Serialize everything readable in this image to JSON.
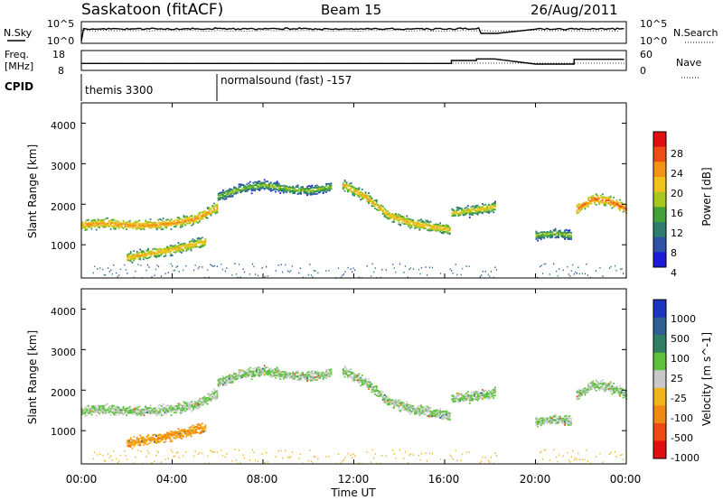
{
  "header": {
    "station": "Saskatoon (fitACF)",
    "beam": "Beam 15",
    "date": "26/Aug/2011"
  },
  "noise_panel": {
    "left_label": "N.Sky",
    "left_ticks": [
      "10^5",
      "10^0"
    ],
    "right_label": "N.Search",
    "right_ticks": [
      "10^5",
      "10^0"
    ]
  },
  "freq_panel": {
    "left_label_line1": "Freq.",
    "left_label_line2": "[MHz]",
    "left_ticks": [
      "18",
      "8"
    ],
    "right_label": "Nave",
    "right_ticks": [
      "60",
      "0"
    ]
  },
  "cpid_panel": {
    "label": "CPID",
    "segments": [
      "themis 3300",
      "normalsound (fast) -157"
    ]
  },
  "axes": {
    "ylabel": "Slant Range [km]",
    "yticks": [
      "1000",
      "2000",
      "3000",
      "4000"
    ],
    "xlabel": "Time UT",
    "xticks": [
      "00:00",
      "04:00",
      "08:00",
      "12:00",
      "16:00",
      "20:00",
      "00:00"
    ]
  },
  "power_colorbar": {
    "label": "Power [dB]",
    "ticks": [
      "4",
      "8",
      "12",
      "16",
      "20",
      "24",
      "28"
    ],
    "colors": [
      "#1c1cd8",
      "#2e52a8",
      "#2e7d6e",
      "#3fa33a",
      "#a8c81e",
      "#f0c21c",
      "#f39316",
      "#ef4b14",
      "#e01010"
    ]
  },
  "velocity_colorbar": {
    "label": "Velocity [m s^-1]",
    "ticks": [
      "1000",
      "500",
      "100",
      "25",
      "-25",
      "-100",
      "-500",
      "-1000"
    ],
    "colors": [
      "#1c34c0",
      "#2e5e92",
      "#2f8062",
      "#5cc23c",
      "#c8c8c8",
      "#f2b21a",
      "#f08a12",
      "#ee4a12",
      "#e01010"
    ]
  },
  "chart_data": {
    "type": "heatmap",
    "x_range": [
      "00:00",
      "24:00"
    ],
    "y_range_km": [
      180,
      4500
    ],
    "gaps_hours": [
      [
        18.3,
        20.0
      ]
    ],
    "nave_steps": [
      {
        "t0": 0.0,
        "t1": 16.3,
        "nave": 20
      },
      {
        "t0": 16.3,
        "t1": 17.4,
        "nave": 30
      },
      {
        "t0": 17.4,
        "t1": 18.2,
        "nave": 35
      },
      {
        "t0": 20.0,
        "t1": 21.7,
        "nave": 18
      },
      {
        "t0": 21.7,
        "t1": 23.9,
        "nave": 34
      }
    ],
    "scatter_bands": [
      {
        "t": [
          0.0,
          1.0,
          2.0,
          3.0,
          4.0,
          5.0,
          6.0
        ],
        "range_km": [
          1500,
          1550,
          1500,
          1500,
          1550,
          1650,
          1950
        ],
        "peak_power_db": 24,
        "velocity": 25
      },
      {
        "t": [
          2.0,
          3.0,
          4.0,
          5.5
        ],
        "range_km": [
          700,
          800,
          900,
          1100
        ],
        "peak_power_db": 22,
        "velocity": -100
      },
      {
        "t": [
          6.0,
          7.0,
          8.0,
          9.0,
          10.0,
          11.0
        ],
        "range_km": [
          2200,
          2400,
          2500,
          2400,
          2350,
          2450
        ],
        "peak_power_db": 16,
        "velocity": 25
      },
      {
        "t": [
          11.5,
          12.5,
          13.5,
          14.5,
          15.5,
          16.2
        ],
        "range_km": [
          2500,
          2200,
          1750,
          1550,
          1450,
          1400
        ],
        "peak_power_db": 22,
        "velocity": 25
      },
      {
        "t": [
          16.3,
          17.0,
          17.6,
          18.2
        ],
        "range_km": [
          1800,
          1850,
          1900,
          1950
        ],
        "peak_power_db": 20,
        "velocity": 25
      },
      {
        "t": [
          20.0,
          20.8,
          21.6
        ],
        "range_km": [
          1250,
          1300,
          1250
        ],
        "peak_power_db": 16,
        "velocity": 25
      },
      {
        "t": [
          21.8,
          22.5,
          23.2,
          24.0
        ],
        "range_km": [
          1900,
          2150,
          2100,
          1900
        ],
        "peak_power_db": 26,
        "velocity": 25
      }
    ]
  }
}
